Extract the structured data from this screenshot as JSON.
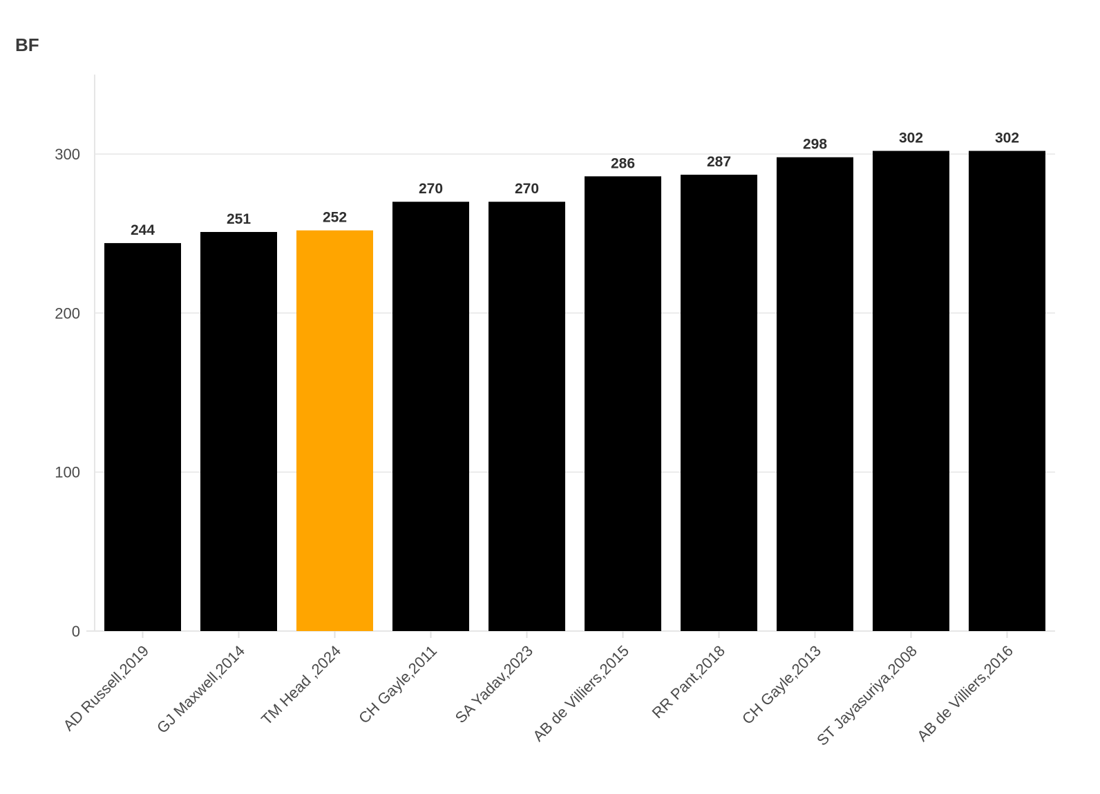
{
  "chart_data": {
    "type": "bar",
    "title": "",
    "xlabel": "",
    "ylabel": "BF",
    "categories": [
      "AD Russell,2019",
      "GJ Maxwell,2014",
      "TM Head ,2024",
      "CH Gayle,2011",
      "SA Yadav,2023",
      "AB de Villiers,2015",
      "RR Pant,2018",
      "CH Gayle,2013",
      "ST Jayasuriya,2008",
      "AB de Villiers,2016"
    ],
    "values": [
      244,
      251,
      252,
      270,
      270,
      286,
      287,
      298,
      302,
      302
    ],
    "highlight_index": 2,
    "ylim": [
      0,
      350
    ],
    "yticks": [
      0,
      100,
      200,
      300
    ],
    "grid": true,
    "legend": "none",
    "colors": {
      "bar": "#000000",
      "highlight": "#FFA500",
      "grid": "#ebebeb",
      "text": "#4a4a4a"
    }
  }
}
